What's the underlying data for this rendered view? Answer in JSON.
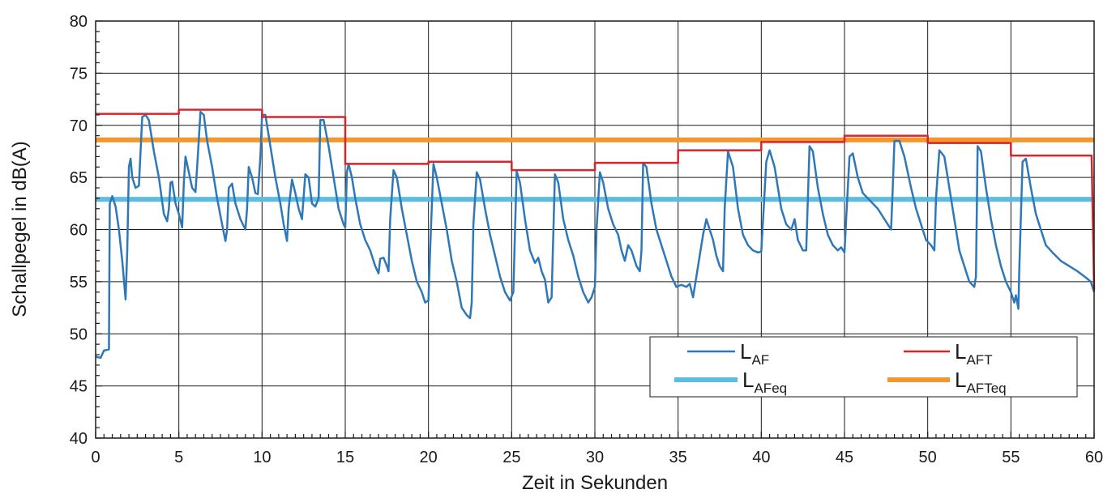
{
  "chart_data": {
    "type": "line",
    "xlabel": "Zeit in Sekunden",
    "ylabel": "Schallpegel in dB(A)",
    "xlim": [
      0,
      60
    ],
    "ylim": [
      40,
      80
    ],
    "xticks": [
      0,
      5,
      10,
      15,
      20,
      25,
      30,
      35,
      40,
      45,
      50,
      55,
      60
    ],
    "yticks": [
      40,
      45,
      50,
      55,
      60,
      65,
      70,
      75,
      80
    ],
    "xtick_labels": [
      "0",
      "5",
      "10",
      "15",
      "20",
      "25",
      "30",
      "35",
      "40",
      "45",
      "50",
      "55",
      "60"
    ],
    "ytick_labels": [
      "40",
      "45",
      "50",
      "55",
      "60",
      "65",
      "70",
      "75",
      "80"
    ],
    "grid": true,
    "legend_position": "bottom-right",
    "series": [
      {
        "name_main": "L",
        "name_sub": "AF",
        "color": "#2f78b7",
        "style": "thin",
        "points": [
          [
            0,
            47.8
          ],
          [
            0.3,
            47.7
          ],
          [
            0.5,
            48.4
          ],
          [
            0.8,
            48.5
          ],
          [
            0.85,
            62.5
          ],
          [
            1.0,
            63.2
          ],
          [
            1.2,
            62.2
          ],
          [
            1.4,
            60.0
          ],
          [
            1.6,
            57.0
          ],
          [
            1.8,
            53.3
          ],
          [
            1.9,
            58.0
          ],
          [
            2.0,
            66.0
          ],
          [
            2.1,
            66.8
          ],
          [
            2.2,
            65.0
          ],
          [
            2.4,
            64.0
          ],
          [
            2.6,
            64.2
          ],
          [
            2.8,
            70.8
          ],
          [
            3.0,
            71.0
          ],
          [
            3.2,
            70.5
          ],
          [
            3.5,
            67.5
          ],
          [
            3.8,
            65.0
          ],
          [
            4.1,
            61.5
          ],
          [
            4.3,
            60.8
          ],
          [
            4.4,
            62.0
          ],
          [
            4.5,
            64.5
          ],
          [
            4.6,
            64.6
          ],
          [
            4.8,
            62.5
          ],
          [
            5.0,
            61.5
          ],
          [
            5.2,
            60.2
          ],
          [
            5.3,
            64.5
          ],
          [
            5.4,
            67.0
          ],
          [
            5.6,
            65.5
          ],
          [
            5.8,
            64.0
          ],
          [
            6.0,
            63.6
          ],
          [
            6.1,
            66.0
          ],
          [
            6.3,
            71.3
          ],
          [
            6.5,
            71.0
          ],
          [
            6.7,
            68.5
          ],
          [
            7.0,
            66.0
          ],
          [
            7.3,
            63.0
          ],
          [
            7.6,
            60.5
          ],
          [
            7.8,
            58.9
          ],
          [
            7.9,
            60.0
          ],
          [
            8.0,
            64.0
          ],
          [
            8.2,
            64.4
          ],
          [
            8.4,
            62.5
          ],
          [
            8.7,
            61.0
          ],
          [
            9.0,
            60.0
          ],
          [
            9.1,
            62.0
          ],
          [
            9.2,
            66.0
          ],
          [
            9.4,
            65.0
          ],
          [
            9.6,
            63.5
          ],
          [
            9.75,
            63.4
          ],
          [
            9.9,
            67.0
          ],
          [
            10.0,
            71.0
          ],
          [
            10.2,
            71.0
          ],
          [
            10.5,
            68.0
          ],
          [
            10.8,
            65.0
          ],
          [
            11.1,
            62.5
          ],
          [
            11.3,
            60.5
          ],
          [
            11.5,
            58.9
          ],
          [
            11.6,
            62.0
          ],
          [
            11.8,
            64.8
          ],
          [
            12.0,
            63.5
          ],
          [
            12.2,
            62.0
          ],
          [
            12.4,
            61.0
          ],
          [
            12.6,
            65.3
          ],
          [
            12.8,
            65.0
          ],
          [
            13.0,
            62.5
          ],
          [
            13.2,
            62.2
          ],
          [
            13.4,
            63.0
          ],
          [
            13.5,
            70.5
          ],
          [
            13.7,
            70.5
          ],
          [
            14.0,
            68.0
          ],
          [
            14.3,
            65.0
          ],
          [
            14.6,
            62.0
          ],
          [
            14.9,
            60.5
          ],
          [
            15.0,
            60.2
          ],
          [
            15.1,
            65.5
          ],
          [
            15.2,
            66.3
          ],
          [
            15.4,
            65.0
          ],
          [
            15.6,
            63.0
          ],
          [
            15.9,
            60.5
          ],
          [
            16.2,
            59.0
          ],
          [
            16.5,
            58.0
          ],
          [
            16.8,
            56.5
          ],
          [
            17.0,
            55.8
          ],
          [
            17.1,
            57.2
          ],
          [
            17.3,
            57.3
          ],
          [
            17.5,
            56.5
          ],
          [
            17.6,
            56.0
          ],
          [
            17.7,
            61.0
          ],
          [
            17.9,
            65.7
          ],
          [
            18.1,
            65.0
          ],
          [
            18.4,
            62.0
          ],
          [
            18.7,
            59.5
          ],
          [
            19.0,
            57.0
          ],
          [
            19.3,
            55.0
          ],
          [
            19.6,
            54.0
          ],
          [
            19.8,
            53.0
          ],
          [
            20.0,
            53.2
          ],
          [
            20.1,
            58.0
          ],
          [
            20.3,
            66.3
          ],
          [
            20.5,
            65.0
          ],
          [
            20.8,
            62.5
          ],
          [
            21.1,
            60.0
          ],
          [
            21.4,
            57.0
          ],
          [
            21.7,
            55.0
          ],
          [
            22.0,
            52.5
          ],
          [
            22.3,
            51.8
          ],
          [
            22.5,
            51.5
          ],
          [
            22.6,
            53.0
          ],
          [
            22.7,
            60.5
          ],
          [
            22.9,
            65.5
          ],
          [
            23.1,
            64.8
          ],
          [
            23.4,
            62.0
          ],
          [
            23.7,
            59.5
          ],
          [
            24.0,
            57.5
          ],
          [
            24.3,
            55.5
          ],
          [
            24.6,
            54.0
          ],
          [
            24.9,
            53.2
          ],
          [
            25.1,
            54.0
          ],
          [
            25.3,
            65.6
          ],
          [
            25.5,
            64.5
          ],
          [
            25.8,
            61.0
          ],
          [
            26.1,
            58.0
          ],
          [
            26.4,
            56.8
          ],
          [
            26.6,
            57.3
          ],
          [
            26.8,
            56.0
          ],
          [
            27.0,
            55.2
          ],
          [
            27.2,
            53.0
          ],
          [
            27.4,
            53.5
          ],
          [
            27.6,
            65.3
          ],
          [
            27.8,
            64.5
          ],
          [
            28.1,
            61.0
          ],
          [
            28.4,
            59.0
          ],
          [
            28.7,
            57.5
          ],
          [
            29.0,
            55.5
          ],
          [
            29.3,
            54.0
          ],
          [
            29.6,
            53.0
          ],
          [
            29.8,
            53.5
          ],
          [
            30.0,
            54.5
          ],
          [
            30.1,
            60.0
          ],
          [
            30.3,
            65.5
          ],
          [
            30.5,
            64.5
          ],
          [
            30.8,
            62.0
          ],
          [
            31.1,
            60.5
          ],
          [
            31.4,
            59.5
          ],
          [
            31.6,
            58.0
          ],
          [
            31.8,
            57.0
          ],
          [
            32.0,
            58.5
          ],
          [
            32.2,
            58.0
          ],
          [
            32.5,
            56.5
          ],
          [
            32.7,
            56.0
          ],
          [
            32.8,
            58.0
          ],
          [
            32.9,
            66.4
          ],
          [
            33.1,
            66.0
          ],
          [
            33.4,
            62.5
          ],
          [
            33.7,
            60.0
          ],
          [
            34.0,
            58.5
          ],
          [
            34.3,
            57.0
          ],
          [
            34.6,
            55.5
          ],
          [
            34.9,
            54.5
          ],
          [
            35.2,
            54.7
          ],
          [
            35.5,
            54.5
          ],
          [
            35.7,
            54.8
          ],
          [
            35.9,
            53.5
          ],
          [
            36.1,
            55.5
          ],
          [
            36.3,
            57.5
          ],
          [
            36.5,
            59.5
          ],
          [
            36.7,
            61.0
          ],
          [
            36.9,
            60.0
          ],
          [
            37.1,
            59.0
          ],
          [
            37.3,
            57.5
          ],
          [
            37.5,
            56.5
          ],
          [
            37.7,
            56.0
          ],
          [
            37.8,
            62.0
          ],
          [
            38.0,
            67.5
          ],
          [
            38.3,
            66.0
          ],
          [
            38.6,
            62.0
          ],
          [
            38.9,
            59.5
          ],
          [
            39.2,
            58.5
          ],
          [
            39.5,
            58.0
          ],
          [
            39.8,
            57.8
          ],
          [
            40.0,
            57.9
          ],
          [
            40.3,
            66.5
          ],
          [
            40.5,
            67.6
          ],
          [
            40.8,
            66.0
          ],
          [
            41.2,
            62.0
          ],
          [
            41.5,
            60.5
          ],
          [
            41.8,
            60.0
          ],
          [
            42.0,
            61.0
          ],
          [
            42.2,
            59.0
          ],
          [
            42.5,
            58.0
          ],
          [
            42.7,
            58.0
          ],
          [
            42.9,
            68.0
          ],
          [
            43.1,
            67.5
          ],
          [
            43.4,
            64.0
          ],
          [
            43.7,
            61.5
          ],
          [
            44.0,
            59.5
          ],
          [
            44.3,
            58.5
          ],
          [
            44.6,
            58.0
          ],
          [
            44.8,
            58.3
          ],
          [
            45.0,
            57.8
          ],
          [
            45.1,
            61.0
          ],
          [
            45.3,
            67.0
          ],
          [
            45.5,
            67.3
          ],
          [
            45.8,
            65.0
          ],
          [
            46.1,
            63.5
          ],
          [
            46.4,
            63.0
          ],
          [
            46.7,
            62.5
          ],
          [
            47.0,
            62.0
          ],
          [
            47.4,
            61.0
          ],
          [
            47.6,
            60.5
          ],
          [
            47.8,
            60.0
          ],
          [
            47.9,
            64.0
          ],
          [
            48.0,
            68.5
          ],
          [
            48.3,
            68.5
          ],
          [
            48.6,
            67.0
          ],
          [
            49.0,
            64.0
          ],
          [
            49.3,
            62.0
          ],
          [
            49.6,
            60.5
          ],
          [
            49.9,
            59.0
          ],
          [
            50.2,
            58.5
          ],
          [
            50.4,
            58.0
          ],
          [
            50.5,
            63.0
          ],
          [
            50.7,
            67.6
          ],
          [
            51.0,
            67.0
          ],
          [
            51.3,
            64.0
          ],
          [
            51.6,
            61.0
          ],
          [
            51.9,
            58.0
          ],
          [
            52.2,
            56.5
          ],
          [
            52.5,
            55.0
          ],
          [
            52.8,
            54.5
          ],
          [
            52.9,
            55.5
          ],
          [
            53.0,
            68.0
          ],
          [
            53.2,
            67.5
          ],
          [
            53.5,
            64.0
          ],
          [
            53.8,
            61.0
          ],
          [
            54.1,
            58.5
          ],
          [
            54.4,
            56.5
          ],
          [
            54.7,
            55.0
          ],
          [
            55.0,
            54.0
          ],
          [
            55.2,
            53.0
          ],
          [
            55.3,
            53.7
          ],
          [
            55.45,
            52.4
          ],
          [
            55.5,
            56.0
          ],
          [
            55.7,
            66.5
          ],
          [
            55.9,
            66.8
          ],
          [
            56.2,
            64.0
          ],
          [
            56.5,
            61.5
          ],
          [
            56.8,
            60.0
          ],
          [
            57.1,
            58.5
          ],
          [
            57.5,
            57.8
          ],
          [
            58.0,
            57.0
          ],
          [
            58.5,
            56.5
          ],
          [
            59.0,
            56.0
          ],
          [
            59.5,
            55.4
          ],
          [
            59.8,
            55.0
          ],
          [
            60.0,
            54.0
          ]
        ]
      },
      {
        "name_main": "L",
        "name_sub": "AFT",
        "color": "#d7262b",
        "style": "thin",
        "points": [
          [
            0,
            71.1
          ],
          [
            5,
            71.1
          ],
          [
            5,
            71.5
          ],
          [
            10,
            71.5
          ],
          [
            10,
            70.8
          ],
          [
            15,
            70.8
          ],
          [
            15,
            66.3
          ],
          [
            20,
            66.3
          ],
          [
            20,
            66.5
          ],
          [
            25,
            66.5
          ],
          [
            25,
            65.7
          ],
          [
            30,
            65.7
          ],
          [
            30,
            66.4
          ],
          [
            35,
            66.4
          ],
          [
            35,
            67.6
          ],
          [
            40,
            67.6
          ],
          [
            40,
            68.4
          ],
          [
            45,
            68.4
          ],
          [
            45,
            69.0
          ],
          [
            50,
            69.0
          ],
          [
            50,
            68.3
          ],
          [
            55,
            68.3
          ],
          [
            55,
            67.1
          ],
          [
            59.85,
            67.1
          ],
          [
            60,
            54.2
          ]
        ]
      },
      {
        "name_main": "L",
        "name_sub": "AFeq",
        "color": "#5bbde4",
        "style": "thick",
        "points": [
          [
            0,
            62.9
          ],
          [
            60,
            62.9
          ]
        ]
      },
      {
        "name_main": "L",
        "name_sub": "AFTeq",
        "color": "#f2962e",
        "style": "thick",
        "points": [
          [
            0,
            68.6
          ],
          [
            60,
            68.6
          ]
        ]
      }
    ]
  }
}
